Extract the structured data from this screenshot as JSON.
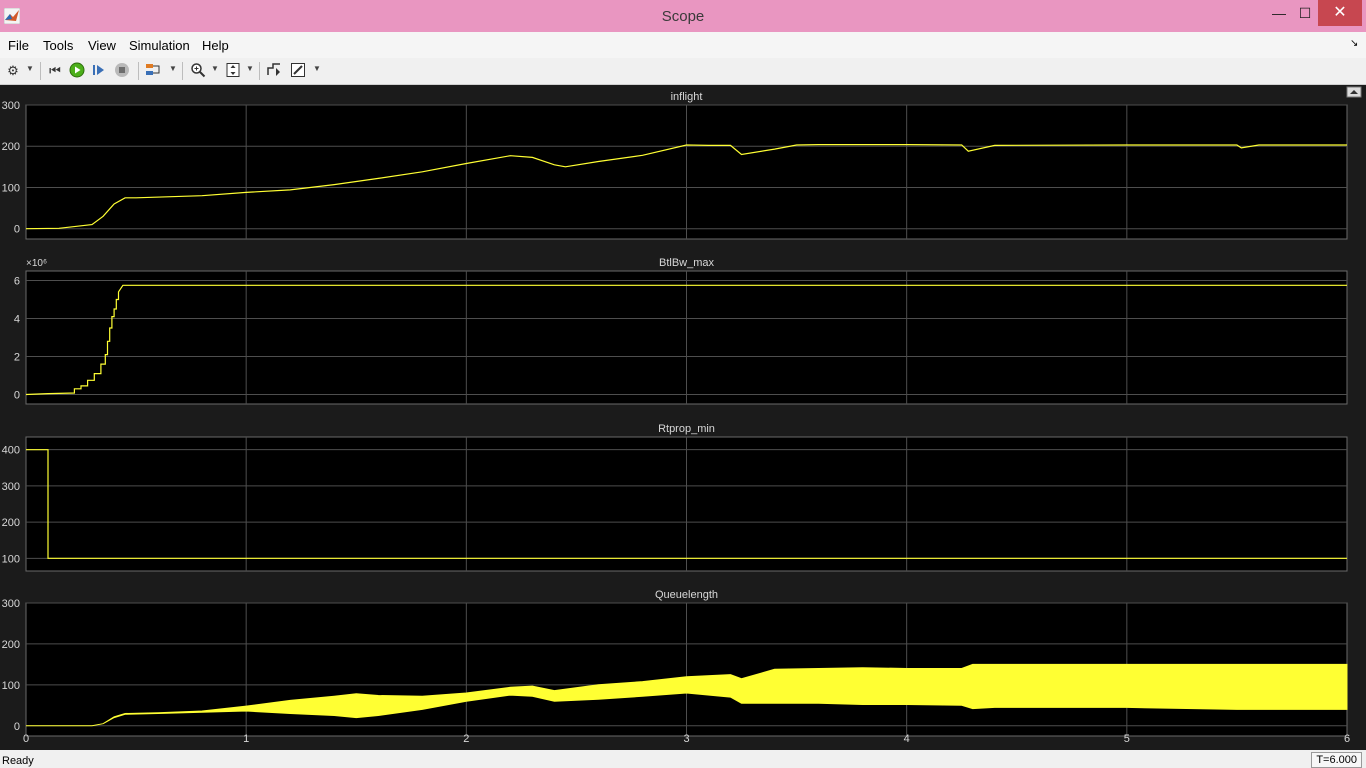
{
  "window": {
    "title": "Scope",
    "minimize_label": "—",
    "maximize_label": "☐",
    "close_label": "✕"
  },
  "menu": [
    "File",
    "Tools",
    "View",
    "Simulation",
    "Help"
  ],
  "menu_extra_label": "↘",
  "toolbar": {
    "icons": [
      "settings-icon",
      "restore-icon",
      "run-icon",
      "step-forward-icon",
      "stop-icon",
      "highlight-icon",
      "zoom-icon",
      "scale-axes-icon",
      "triggers-icon",
      "edit-icon"
    ],
    "accent": "#4caf1a"
  },
  "status": {
    "text": "Ready",
    "time": "T=6.000"
  },
  "chart_data": [
    {
      "type": "line",
      "title": "inflight",
      "exponent_label": "",
      "ylim": [
        -25,
        300
      ],
      "yticks": [
        "0",
        "100",
        "200",
        "300"
      ],
      "ytick_values": [
        0,
        100,
        200,
        300
      ],
      "x": [
        0,
        0.15,
        0.3,
        0.35,
        0.4,
        0.45,
        0.5,
        0.8,
        1.0,
        1.2,
        1.4,
        1.6,
        1.8,
        2.0,
        2.2,
        2.3,
        2.4,
        2.45,
        2.6,
        2.8,
        3.0,
        3.1,
        3.2,
        3.25,
        3.4,
        3.5,
        3.6,
        4.0,
        4.25,
        4.28,
        4.4,
        5.0,
        5.5,
        5.52,
        5.6,
        6.0
      ],
      "values": [
        0,
        1,
        10,
        30,
        60,
        75,
        75,
        80,
        88,
        94,
        107,
        122,
        138,
        158,
        177,
        173,
        155,
        150,
        163,
        178,
        203,
        202,
        202,
        180,
        193,
        203,
        204,
        204,
        203,
        188,
        202,
        203,
        203,
        196,
        203,
        203
      ],
      "series_color": "#ffff33"
    },
    {
      "type": "line",
      "title": "BtlBw_max",
      "exponent_label": "×10⁶",
      "ylim": [
        -0.5,
        6.5
      ],
      "yticks": [
        "0",
        "2",
        "4",
        "6"
      ],
      "ytick_values": [
        0,
        2,
        4,
        6
      ],
      "x": [
        0,
        0.1,
        0.22,
        0.22,
        0.25,
        0.25,
        0.28,
        0.28,
        0.31,
        0.31,
        0.34,
        0.34,
        0.36,
        0.36,
        0.37,
        0.37,
        0.38,
        0.38,
        0.39,
        0.39,
        0.4,
        0.4,
        0.41,
        0.41,
        0.42,
        0.42,
        0.44,
        6.0
      ],
      "values": [
        0,
        0.05,
        0.08,
        0.3,
        0.3,
        0.45,
        0.45,
        0.75,
        0.75,
        1.1,
        1.1,
        1.6,
        1.6,
        2.1,
        2.1,
        2.8,
        2.8,
        3.5,
        3.5,
        4.1,
        4.1,
        4.5,
        4.5,
        5.0,
        5.0,
        5.4,
        5.75,
        5.75
      ],
      "series_color": "#ffff33"
    },
    {
      "type": "line",
      "title": "Rtprop_min",
      "exponent_label": "",
      "ylim": [
        65,
        435
      ],
      "yticks": [
        "100",
        "200",
        "300",
        "400"
      ],
      "ytick_values": [
        100,
        200,
        300,
        400
      ],
      "x": [
        0,
        0.1,
        0.1,
        6.0
      ],
      "values": [
        400,
        400,
        100,
        100
      ],
      "series_color": "#ffff33"
    },
    {
      "type": "area",
      "title": "Queuelength",
      "exponent_label": "",
      "ylim": [
        -25,
        300
      ],
      "yticks": [
        "0",
        "100",
        "200",
        "300"
      ],
      "ytick_values": [
        0,
        100,
        200,
        300
      ],
      "x": [
        0,
        0.3,
        0.35,
        0.4,
        0.45,
        0.6,
        0.8,
        1.0,
        1.2,
        1.4,
        1.5,
        1.6,
        1.8,
        2.0,
        2.2,
        2.3,
        2.4,
        2.6,
        2.8,
        3.0,
        3.2,
        3.25,
        3.4,
        3.6,
        3.8,
        4.0,
        4.25,
        4.3,
        4.4,
        4.6,
        5.0,
        5.5,
        6.0
      ],
      "upper": [
        0,
        0,
        5,
        22,
        30,
        32,
        36,
        48,
        62,
        72,
        78,
        74,
        72,
        80,
        94,
        97,
        86,
        100,
        108,
        120,
        125,
        115,
        138,
        140,
        142,
        140,
        140,
        150,
        150,
        150,
        150,
        150,
        150
      ],
      "lower": [
        0,
        0,
        5,
        20,
        28,
        30,
        33,
        36,
        30,
        25,
        20,
        25,
        40,
        60,
        75,
        72,
        60,
        65,
        72,
        80,
        70,
        55,
        55,
        55,
        52,
        52,
        50,
        42,
        45,
        45,
        45,
        40,
        40
      ],
      "series_color": "#ffff33"
    }
  ],
  "x_axis": {
    "xlim": [
      0,
      6
    ],
    "ticks": [
      "0",
      "1",
      "2",
      "3",
      "4",
      "5",
      "6"
    ],
    "tick_values": [
      0,
      1,
      2,
      3,
      4,
      5,
      6
    ]
  }
}
